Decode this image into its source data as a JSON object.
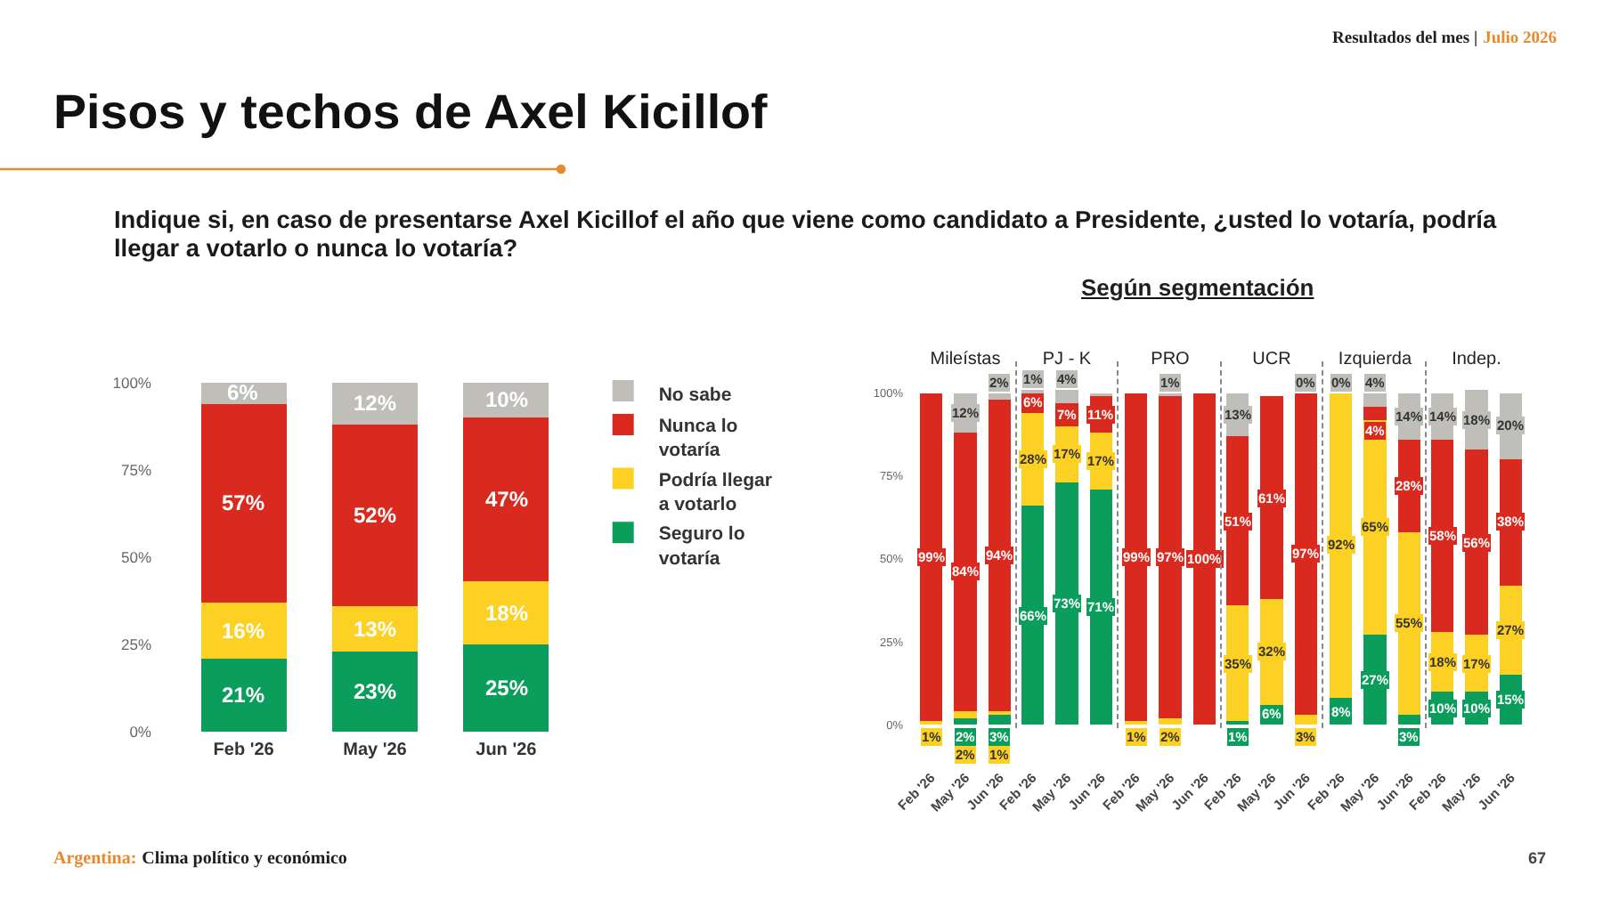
{
  "chart_data": [
    {
      "type": "bar",
      "title": "Pisos y techos de Axel Kicillof",
      "subtitle": "Indique si, en caso de presentarse Axel Kicillof el año que viene como candidato a Presidente, ¿usted lo votaría, podría llegar a votarlo o nunca lo votaría?",
      "annotations": [
        "Resultados del mes |",
        "Julio 2026",
        "Según segmentación",
        "Argentina:",
        "Clima político y económico",
        "67"
      ],
      "categories": [
        "Feb '26",
        "May '26",
        "Jun '26"
      ],
      "stacked": true,
      "legend": "top right",
      "ylim": [
        0,
        100
      ],
      "yticks": [
        {
          "value": 0,
          "label": "0%"
        },
        {
          "value": 25,
          "label": "25%"
        },
        {
          "value": 50,
          "label": "50%"
        },
        {
          "value": 75,
          "label": "75%"
        },
        {
          "value": 100,
          "label": "100%"
        }
      ],
      "series": [
        {
          "name": "Seguro lo votaría",
          "color": "#0b9d5b",
          "values": [
            21,
            23,
            25
          ],
          "value_labels": [
            "21%",
            "23%",
            "25%"
          ]
        },
        {
          "name": "Podría llegar a votarlo",
          "color": "#fcd123",
          "values": [
            16,
            13,
            18
          ],
          "value_labels": [
            "16%",
            "13%",
            "18%"
          ]
        },
        {
          "name": "Nunca lo votaría",
          "color": "#da2a1f",
          "values": [
            57,
            52,
            47
          ],
          "value_labels": [
            "57%",
            "52%",
            "47%"
          ]
        },
        {
          "name": "No sabe",
          "color": "#c0beb9",
          "values": [
            6,
            12,
            10
          ],
          "value_labels": [
            "6%",
            "12%",
            "10%"
          ]
        }
      ]
    },
    {
      "type": "bar",
      "title": "Mileístas",
      "categories": [
        "Feb '26",
        "May '26",
        "Jun '26"
      ],
      "stacked": true,
      "ylim": [
        0,
        101
      ],
      "yticks": [
        {
          "value": 0,
          "label": "0%"
        },
        {
          "value": 25,
          "label": "25%"
        },
        {
          "value": 50,
          "label": "50%"
        },
        {
          "value": 75,
          "label": "75%"
        },
        {
          "value": 100,
          "label": "100%"
        }
      ],
      "series": [
        {
          "color": "#0b9d5b",
          "values": [
            0,
            2,
            3
          ],
          "value_labels": [
            null,
            "2%",
            "3%"
          ]
        },
        {
          "color": "#fcd123",
          "values": [
            1,
            2,
            1
          ],
          "value_labels": [
            "1%",
            "2%",
            "1%"
          ]
        },
        {
          "color": "#da2a1f",
          "values": [
            99,
            84,
            94
          ],
          "value_labels": [
            "99%",
            "84%",
            "94%"
          ]
        },
        {
          "color": "#c0beb9",
          "values": [
            0,
            12,
            2
          ],
          "value_labels": [
            null,
            "12%",
            "2%"
          ]
        }
      ]
    },
    {
      "type": "bar",
      "title": "PJ - K",
      "categories": [
        "Feb '26",
        "May '26",
        "Jun '26"
      ],
      "stacked": true,
      "tick_labels": "x",
      "ylim": [
        0,
        101
      ],
      "series": [
        {
          "color": "#0b9d5b",
          "values": [
            66,
            73,
            71
          ],
          "value_labels": [
            "66%",
            "73%",
            "71%"
          ]
        },
        {
          "color": "#fcd123",
          "values": [
            28,
            17,
            17
          ],
          "value_labels": [
            "28%",
            "17%",
            "17%"
          ]
        },
        {
          "color": "#da2a1f",
          "values": [
            6,
            7,
            11
          ],
          "value_labels": [
            "6%",
            "7%",
            "11%"
          ]
        },
        {
          "color": "#c0beb9",
          "values": [
            1,
            4,
            1
          ],
          "value_labels": [
            "1%",
            "4%",
            null
          ]
        }
      ]
    },
    {
      "type": "bar",
      "title": "PRO",
      "categories": [
        "Feb '26",
        "May '26",
        "Jun '26"
      ],
      "stacked": true,
      "tick_labels": "x",
      "ylim": [
        0,
        101
      ],
      "series": [
        {
          "color": "#fcd123",
          "values": [
            1,
            2,
            0
          ],
          "value_labels": [
            "1%",
            "2%",
            null
          ]
        },
        {
          "color": "#da2a1f",
          "values": [
            99,
            97,
            100
          ],
          "value_labels": [
            "99%",
            "97%",
            "100%"
          ]
        },
        {
          "color": "#c0beb9",
          "values": [
            0,
            1,
            0
          ],
          "value_labels": [
            null,
            "1%",
            null
          ]
        }
      ]
    },
    {
      "type": "bar",
      "title": "UCR",
      "categories": [
        "Feb '26",
        "May '26",
        "Jun '26"
      ],
      "stacked": true,
      "tick_labels": "x",
      "ylim": [
        0,
        101
      ],
      "series": [
        {
          "color": "#0b9d5b",
          "values": [
            1,
            6,
            0
          ],
          "value_labels": [
            "1%",
            "6%",
            null
          ]
        },
        {
          "color": "#fcd123",
          "values": [
            35,
            32,
            3
          ],
          "value_labels": [
            "35%",
            "32%",
            "3%"
          ]
        },
        {
          "color": "#da2a1f",
          "values": [
            51,
            61,
            97
          ],
          "value_labels": [
            "51%",
            "61%",
            "97%"
          ]
        },
        {
          "color": "#c0beb9",
          "values": [
            13,
            0,
            0
          ],
          "value_labels": [
            "13%",
            null,
            "0%"
          ]
        }
      ]
    },
    {
      "type": "bar",
      "title": "Izquierda",
      "categories": [
        "Feb '26",
        "May '26",
        "Jun '26"
      ],
      "stacked": true,
      "tick_labels": "x",
      "ylim": [
        0,
        101
      ],
      "series": [
        {
          "color": "#0b9d5b",
          "values": [
            8,
            27,
            3
          ],
          "value_labels": [
            "8%",
            "27%",
            "3%"
          ]
        },
        {
          "color": "#fcd123",
          "values": [
            92,
            65,
            55
          ],
          "value_labels": [
            "92%",
            "65%",
            "55%"
          ]
        },
        {
          "color": "#da2a1f",
          "values": [
            0,
            4,
            28
          ],
          "value_labels": [
            null,
            "4%",
            "28%"
          ]
        },
        {
          "color": "#c0beb9",
          "values": [
            0,
            4,
            14
          ],
          "value_labels": [
            "0%",
            "4%",
            "14%"
          ]
        }
      ]
    },
    {
      "type": "bar",
      "title": "Indep.",
      "categories": [
        "Feb '26",
        "May '26",
        "Jun '26"
      ],
      "stacked": true,
      "tick_labels": "x",
      "ylim": [
        0,
        101
      ],
      "series": [
        {
          "color": "#0b9d5b",
          "values": [
            10,
            10,
            15
          ],
          "value_labels": [
            "10%",
            "10%",
            "15%"
          ]
        },
        {
          "color": "#fcd123",
          "values": [
            18,
            17,
            27
          ],
          "value_labels": [
            "18%",
            "17%",
            "27%"
          ]
        },
        {
          "color": "#da2a1f",
          "values": [
            58,
            56,
            38
          ],
          "value_labels": [
            "58%",
            "56%",
            "38%"
          ]
        },
        {
          "color": "#c0beb9",
          "values": [
            14,
            18,
            20
          ],
          "value_labels": [
            "14%",
            "18%",
            "20%"
          ]
        }
      ]
    }
  ]
}
